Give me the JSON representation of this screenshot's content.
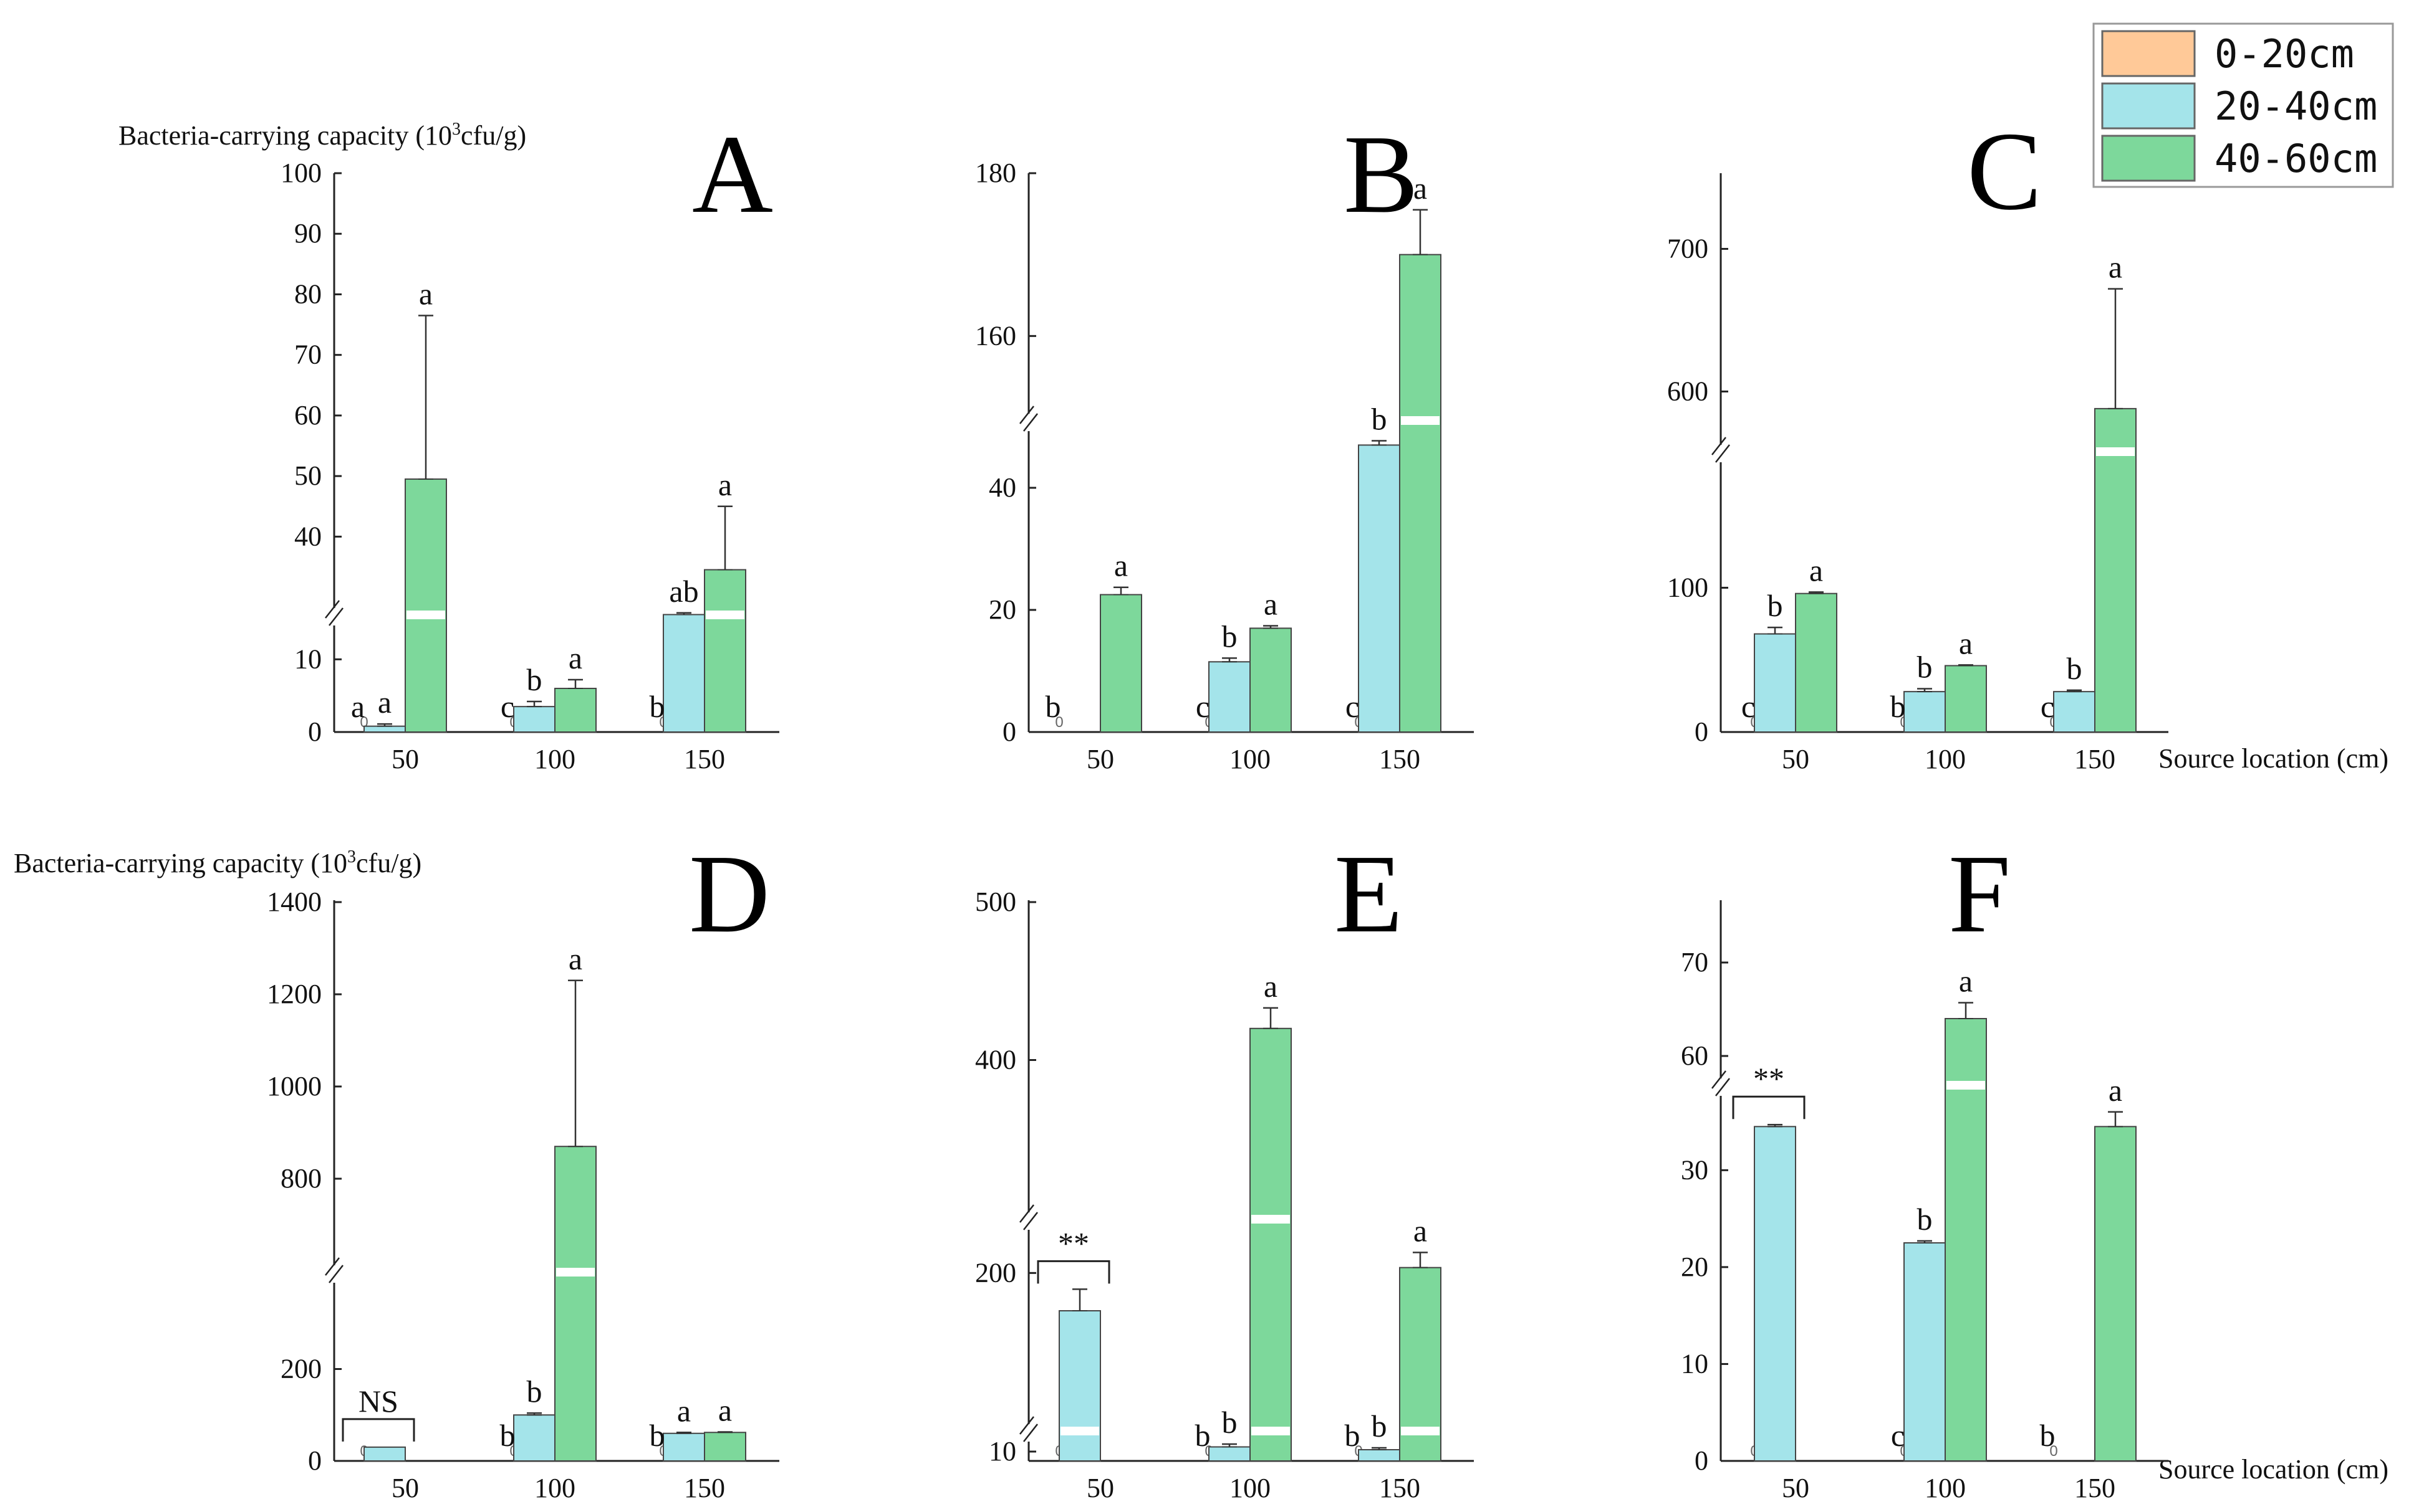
{
  "colors": {
    "0-20cm": "#FFC998",
    "20-40cm": "#A4E4EA",
    "40-60cm": "#7DD89B",
    "axis": "#222222",
    "error": "#333333"
  },
  "figure": {
    "ylabel_top": "Bacteria-carrying capacity (10",
    "ylabel_sup": "3",
    "ylabel_tail": "cfu/g)",
    "xlabel": "Source location (cm)",
    "legend": [
      "0-20cm",
      "20-40cm",
      "40-60cm"
    ]
  },
  "chart_data": [
    {
      "type": "bar",
      "panel": "A",
      "categories": [
        "50",
        "100",
        "150"
      ],
      "series_names": [
        "0-20cm",
        "20-40cm",
        "40-60cm"
      ],
      "values": [
        [
          0,
          0.8,
          49.5
        ],
        [
          0,
          3.5,
          6
        ],
        [
          0,
          18,
          34
        ]
      ],
      "errors": [
        [
          0,
          0.3,
          27
        ],
        [
          0,
          0.7,
          1.2
        ],
        [
          0,
          0.6,
          11
        ]
      ],
      "letters": [
        [
          "a",
          "a",
          "a"
        ],
        [
          "c",
          "b",
          "a"
        ],
        [
          "b",
          "ab",
          "a"
        ]
      ],
      "broken_axis": {
        "lower": [
          0,
          15
        ],
        "upper": [
          35,
          100
        ]
      },
      "ticks": [
        0,
        10,
        40,
        50,
        60,
        70,
        80,
        90,
        100
      ],
      "zero_marks": [
        "0",
        "0",
        "0"
      ]
    },
    {
      "type": "bar",
      "panel": "B",
      "categories": [
        "50",
        "100",
        "150"
      ],
      "series_names": [
        "0-20cm",
        "20-40cm",
        "40-60cm"
      ],
      "values": [
        [
          0,
          0,
          22.5
        ],
        [
          0,
          11.5,
          17
        ],
        [
          0,
          47,
          170
        ]
      ],
      "errors": [
        [
          0,
          0,
          1.2
        ],
        [
          0,
          0.6,
          0.4
        ],
        [
          0,
          0.7,
          5.5
        ]
      ],
      "letters": [
        [
          "b",
          "",
          "a"
        ],
        [
          "c",
          "b",
          "a"
        ],
        [
          "c",
          "b",
          "a"
        ]
      ],
      "broken_axis": {
        "lower": [
          0,
          50
        ],
        "upper": [
          150,
          180
        ]
      },
      "ticks": [
        0,
        20,
        40,
        160,
        180
      ],
      "zero_marks": [
        "0",
        "0",
        "0"
      ]
    },
    {
      "type": "bar",
      "panel": "C",
      "categories": [
        "50",
        "100",
        "150"
      ],
      "series_names": [
        "0-20cm",
        "20-40cm",
        "40-60cm"
      ],
      "values": [
        [
          0,
          68,
          96
        ],
        [
          0,
          28,
          46
        ],
        [
          0,
          28,
          588
        ]
      ],
      "errors": [
        [
          0,
          4.5,
          1
        ],
        [
          0,
          2,
          0.5
        ],
        [
          0,
          1,
          84
        ]
      ],
      "letters": [
        [
          "c",
          "b",
          "a"
        ],
        [
          "b",
          "b",
          "a"
        ],
        [
          "c",
          "b",
          "a"
        ]
      ],
      "broken_axis": {
        "lower": [
          0,
          190
        ],
        "upper": [
          560,
          750
        ]
      },
      "ticks": [
        0,
        100,
        600,
        700
      ],
      "zero_marks": [
        "0",
        "0",
        "0"
      ]
    },
    {
      "type": "bar",
      "panel": "D",
      "categories": [
        "50",
        "100",
        "150"
      ],
      "series_names": [
        "0-20cm",
        "20-40cm",
        "40-60cm"
      ],
      "values": [
        [
          0,
          30,
          null
        ],
        [
          0,
          100,
          870
        ],
        [
          0,
          60,
          62
        ]
      ],
      "errors": [
        [
          0,
          0,
          0
        ],
        [
          0,
          4,
          360
        ],
        [
          0,
          2,
          1
        ]
      ],
      "letters": [
        [
          "",
          "",
          ""
        ],
        [
          "b",
          "b",
          "a"
        ],
        [
          "b",
          "a",
          "a"
        ]
      ],
      "comparison": {
        "category": "50",
        "label": "NS"
      },
      "broken_axis": {
        "lower": [
          0,
          400
        ],
        "upper": [
          600,
          1400
        ]
      },
      "ticks": [
        0,
        200,
        800,
        1000,
        1200,
        1400
      ],
      "zero_marks": [
        "0",
        "0",
        "0"
      ]
    },
    {
      "type": "bar",
      "panel": "E",
      "categories": [
        "50",
        "100",
        "150"
      ],
      "series_names": [
        "0-20cm",
        "20-40cm",
        "40-60cm"
      ],
      "values": [
        [
          0,
          130,
          null
        ],
        [
          0,
          10.5,
          420
        ],
        [
          0,
          10.2,
          210
        ]
      ],
      "errors": [
        [
          0,
          40,
          0
        ],
        [
          0,
          0.3,
          13
        ],
        [
          0,
          0.2,
          28
        ]
      ],
      "letters": [
        [
          "",
          "",
          ""
        ],
        [
          "b",
          "b",
          "a"
        ],
        [
          "b",
          "b",
          "a"
        ]
      ],
      "comparison": {
        "category": "50",
        "label": "**"
      },
      "broken_axis": {
        "segments": [
          [
            10,
            12
          ],
          [
            100,
            250
          ],
          [
            300,
            500
          ]
        ]
      },
      "ticks": [
        10,
        200,
        400,
        500
      ],
      "zero_marks": [
        "0",
        "0",
        "0"
      ]
    },
    {
      "type": "bar",
      "panel": "F",
      "categories": [
        "50",
        "100",
        "150"
      ],
      "series_names": [
        "0-20cm",
        "20-40cm",
        "40-60cm"
      ],
      "values": [
        [
          0,
          34.5,
          null
        ],
        [
          0,
          22.5,
          64
        ],
        [
          0,
          null,
          34.5
        ]
      ],
      "errors": [
        [
          0,
          0.2,
          0
        ],
        [
          0,
          0.2,
          1.7
        ],
        [
          0,
          0,
          1.8
        ]
      ],
      "letters": [
        [
          "",
          "",
          ""
        ],
        [
          "c",
          "b",
          "a"
        ],
        [
          "b",
          "",
          "a"
        ]
      ],
      "comparison": {
        "category": "50",
        "label": "**"
      },
      "broken_axis": {
        "lower": [
          0,
          36
        ],
        "upper": [
          55,
          75
        ]
      },
      "ticks": [
        0,
        10,
        20,
        30,
        60,
        70
      ],
      "zero_marks": [
        "0",
        "0",
        "0"
      ]
    }
  ]
}
